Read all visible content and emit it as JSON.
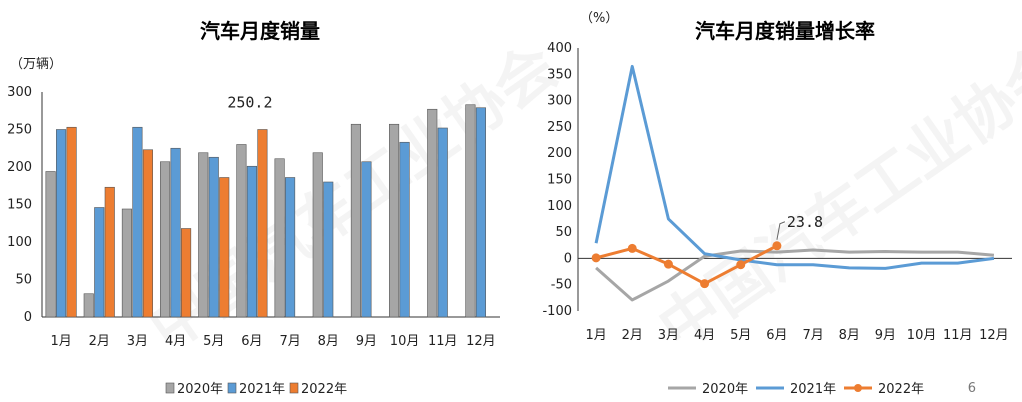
{
  "page_number": "6",
  "colors": {
    "series_2020": "#A6A6A6",
    "series_2021": "#5B9BD5",
    "series_2022": "#ED7D31"
  },
  "chart_data": [
    {
      "type": "bar",
      "title": "汽车月度销量",
      "ylabel": "（万辆）",
      "ylim": [
        0,
        300
      ],
      "yticks": [
        0,
        50,
        100,
        150,
        200,
        250,
        300
      ],
      "categories": [
        "1月",
        "2月",
        "3月",
        "4月",
        "5月",
        "6月",
        "7月",
        "8月",
        "9月",
        "10月",
        "11月",
        "12月"
      ],
      "series": [
        {
          "name": "2020年",
          "values": [
            194,
            31,
            144,
            207,
            219,
            230,
            211,
            219,
            257,
            257,
            277,
            283
          ]
        },
        {
          "name": "2021年",
          "values": [
            250,
            146,
            253,
            225,
            213,
            201,
            186,
            180,
            207,
            233,
            252,
            279
          ]
        },
        {
          "name": "2022年",
          "values": [
            253,
            173,
            223,
            118,
            186,
            250,
            null,
            null,
            null,
            null,
            null,
            null
          ]
        }
      ],
      "annotations": [
        {
          "text": "250.2",
          "category": "6月",
          "series": "2022年"
        }
      ],
      "legend": "bottom",
      "grid": false
    },
    {
      "type": "line",
      "title": "汽车月度销量增长率",
      "ylabel": "（%）",
      "ylim": [
        -100,
        400
      ],
      "yticks": [
        -100,
        -50,
        0,
        50,
        100,
        150,
        200,
        250,
        300,
        350,
        400
      ],
      "categories": [
        "1月",
        "2月",
        "3月",
        "4月",
        "5月",
        "6月",
        "7月",
        "8月",
        "9月",
        "10月",
        "11月",
        "12月"
      ],
      "series": [
        {
          "name": "2020年",
          "values": [
            -18,
            -79,
            -43,
            4,
            14,
            12,
            16,
            12,
            13,
            12,
            12,
            6
          ]
        },
        {
          "name": "2021年",
          "values": [
            29,
            365,
            75,
            9,
            -3,
            -12,
            -12,
            -18,
            -19,
            -9,
            -9,
            0
          ]
        },
        {
          "name": "2022年",
          "values": [
            1,
            19,
            -11,
            -48,
            -12,
            24,
            null,
            null,
            null,
            null,
            null,
            null
          ]
        }
      ],
      "annotations": [
        {
          "text": "23.8",
          "category": "6月",
          "series": "2022年"
        }
      ],
      "legend": "bottom",
      "grid": false
    }
  ]
}
